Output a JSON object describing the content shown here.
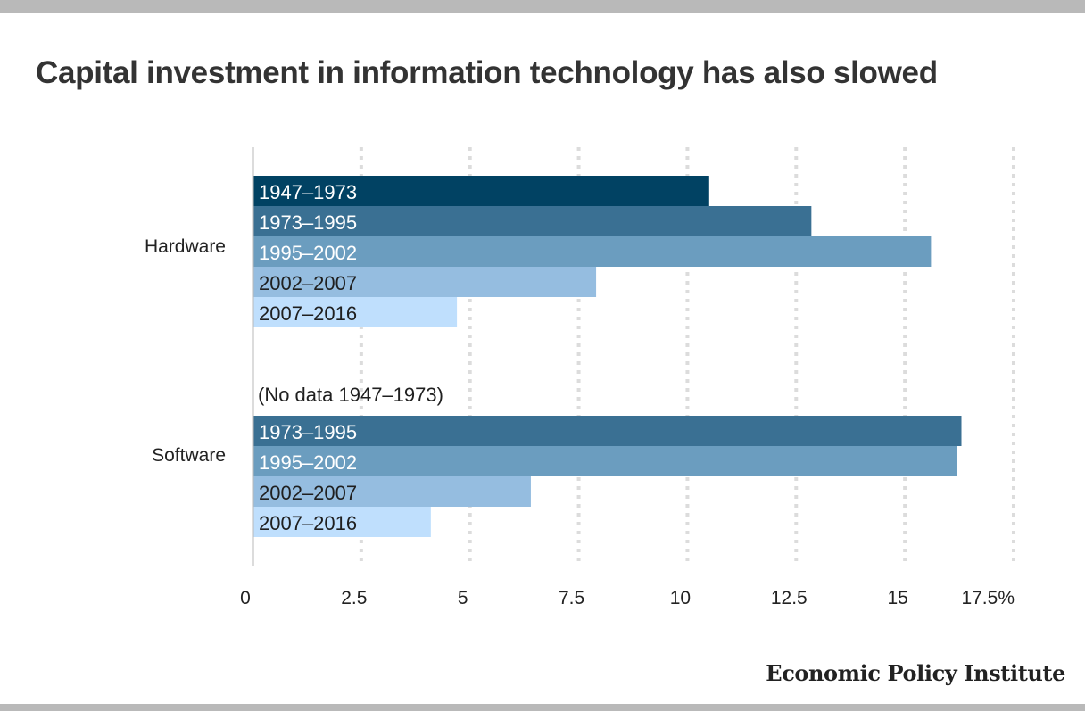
{
  "title": "Capital investment in information technology has also slowed",
  "source": "Economic Policy Institute",
  "chart_data": {
    "type": "bar",
    "orientation": "horizontal",
    "title": "Capital investment in information technology has also slowed",
    "xlabel": "",
    "ylabel": "",
    "xlim": [
      0,
      17.5
    ],
    "x_ticks": [
      0,
      2.5,
      5,
      7.5,
      10,
      12.5,
      15,
      17.5
    ],
    "x_tick_labels": [
      "0",
      "2.5",
      "5",
      "7.5",
      "10",
      "12.5",
      "15",
      "17.5%"
    ],
    "grid": "vertical dotted",
    "legend": "none",
    "colors": {
      "1947–1973": "#014263",
      "1973–1995": "#3a7093",
      "1995–2002": "#6b9dbf",
      "2002–2007": "#95bde0",
      "2007–2016": "#bfdffd"
    },
    "groups": [
      {
        "category": "Hardware",
        "note": "",
        "bars": [
          {
            "label": "1947–1973",
            "value": 10.5
          },
          {
            "label": "1973–1995",
            "value": 12.85
          },
          {
            "label": "1995–2002",
            "value": 15.6
          },
          {
            "label": "2002–2007",
            "value": 7.9
          },
          {
            "label": "2007–2016",
            "value": 4.7
          }
        ]
      },
      {
        "category": "Software",
        "note": "(No data 1947–1973)",
        "bars": [
          {
            "label": "1973–1995",
            "value": 16.3
          },
          {
            "label": "1995–2002",
            "value": 16.2
          },
          {
            "label": "2002–2007",
            "value": 6.4
          },
          {
            "label": "2007–2016",
            "value": 4.1
          }
        ]
      }
    ]
  }
}
